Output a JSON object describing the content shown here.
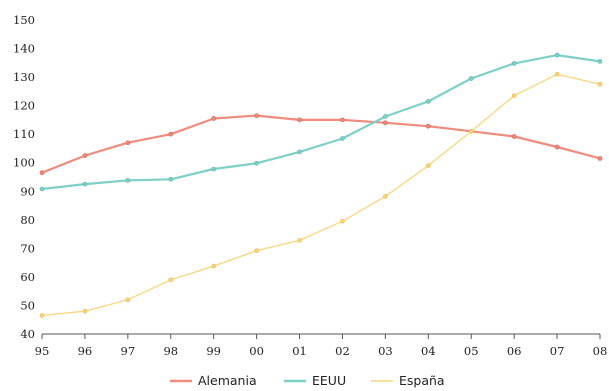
{
  "chart_data": {
    "type": "line",
    "title": "",
    "xlabel": "",
    "ylabel": "",
    "categories": [
      "95",
      "96",
      "97",
      "98",
      "99",
      "00",
      "01",
      "02",
      "03",
      "04",
      "05",
      "06",
      "07",
      "08"
    ],
    "yticks": [
      "150",
      "140",
      "130",
      "120",
      "110",
      "100",
      "90",
      "80",
      "70",
      "60",
      "50",
      "40"
    ],
    "ylim": [
      40,
      150
    ],
    "grid": false,
    "legend_position": "bottom",
    "series": [
      {
        "name": "Alemania",
        "color": "#f08c7d",
        "values": [
          96.5,
          102.5,
          107,
          110,
          115.5,
          116.5,
          115,
          115,
          114,
          112.8,
          111,
          109.2,
          105.5,
          101.5
        ]
      },
      {
        "name": "EEUU",
        "color": "#7fd0c7",
        "values": [
          90.8,
          92.5,
          93.8,
          94.2,
          97.8,
          99.8,
          103.8,
          108.5,
          116.2,
          121.5,
          129.5,
          134.8,
          137.7,
          135.5
        ]
      },
      {
        "name": "España",
        "color": "#fad57d",
        "values": [
          46.5,
          48,
          52,
          59,
          63.8,
          69.2,
          72.8,
          79.5,
          88.2,
          99,
          111,
          123.5,
          131,
          127.5
        ]
      }
    ]
  }
}
